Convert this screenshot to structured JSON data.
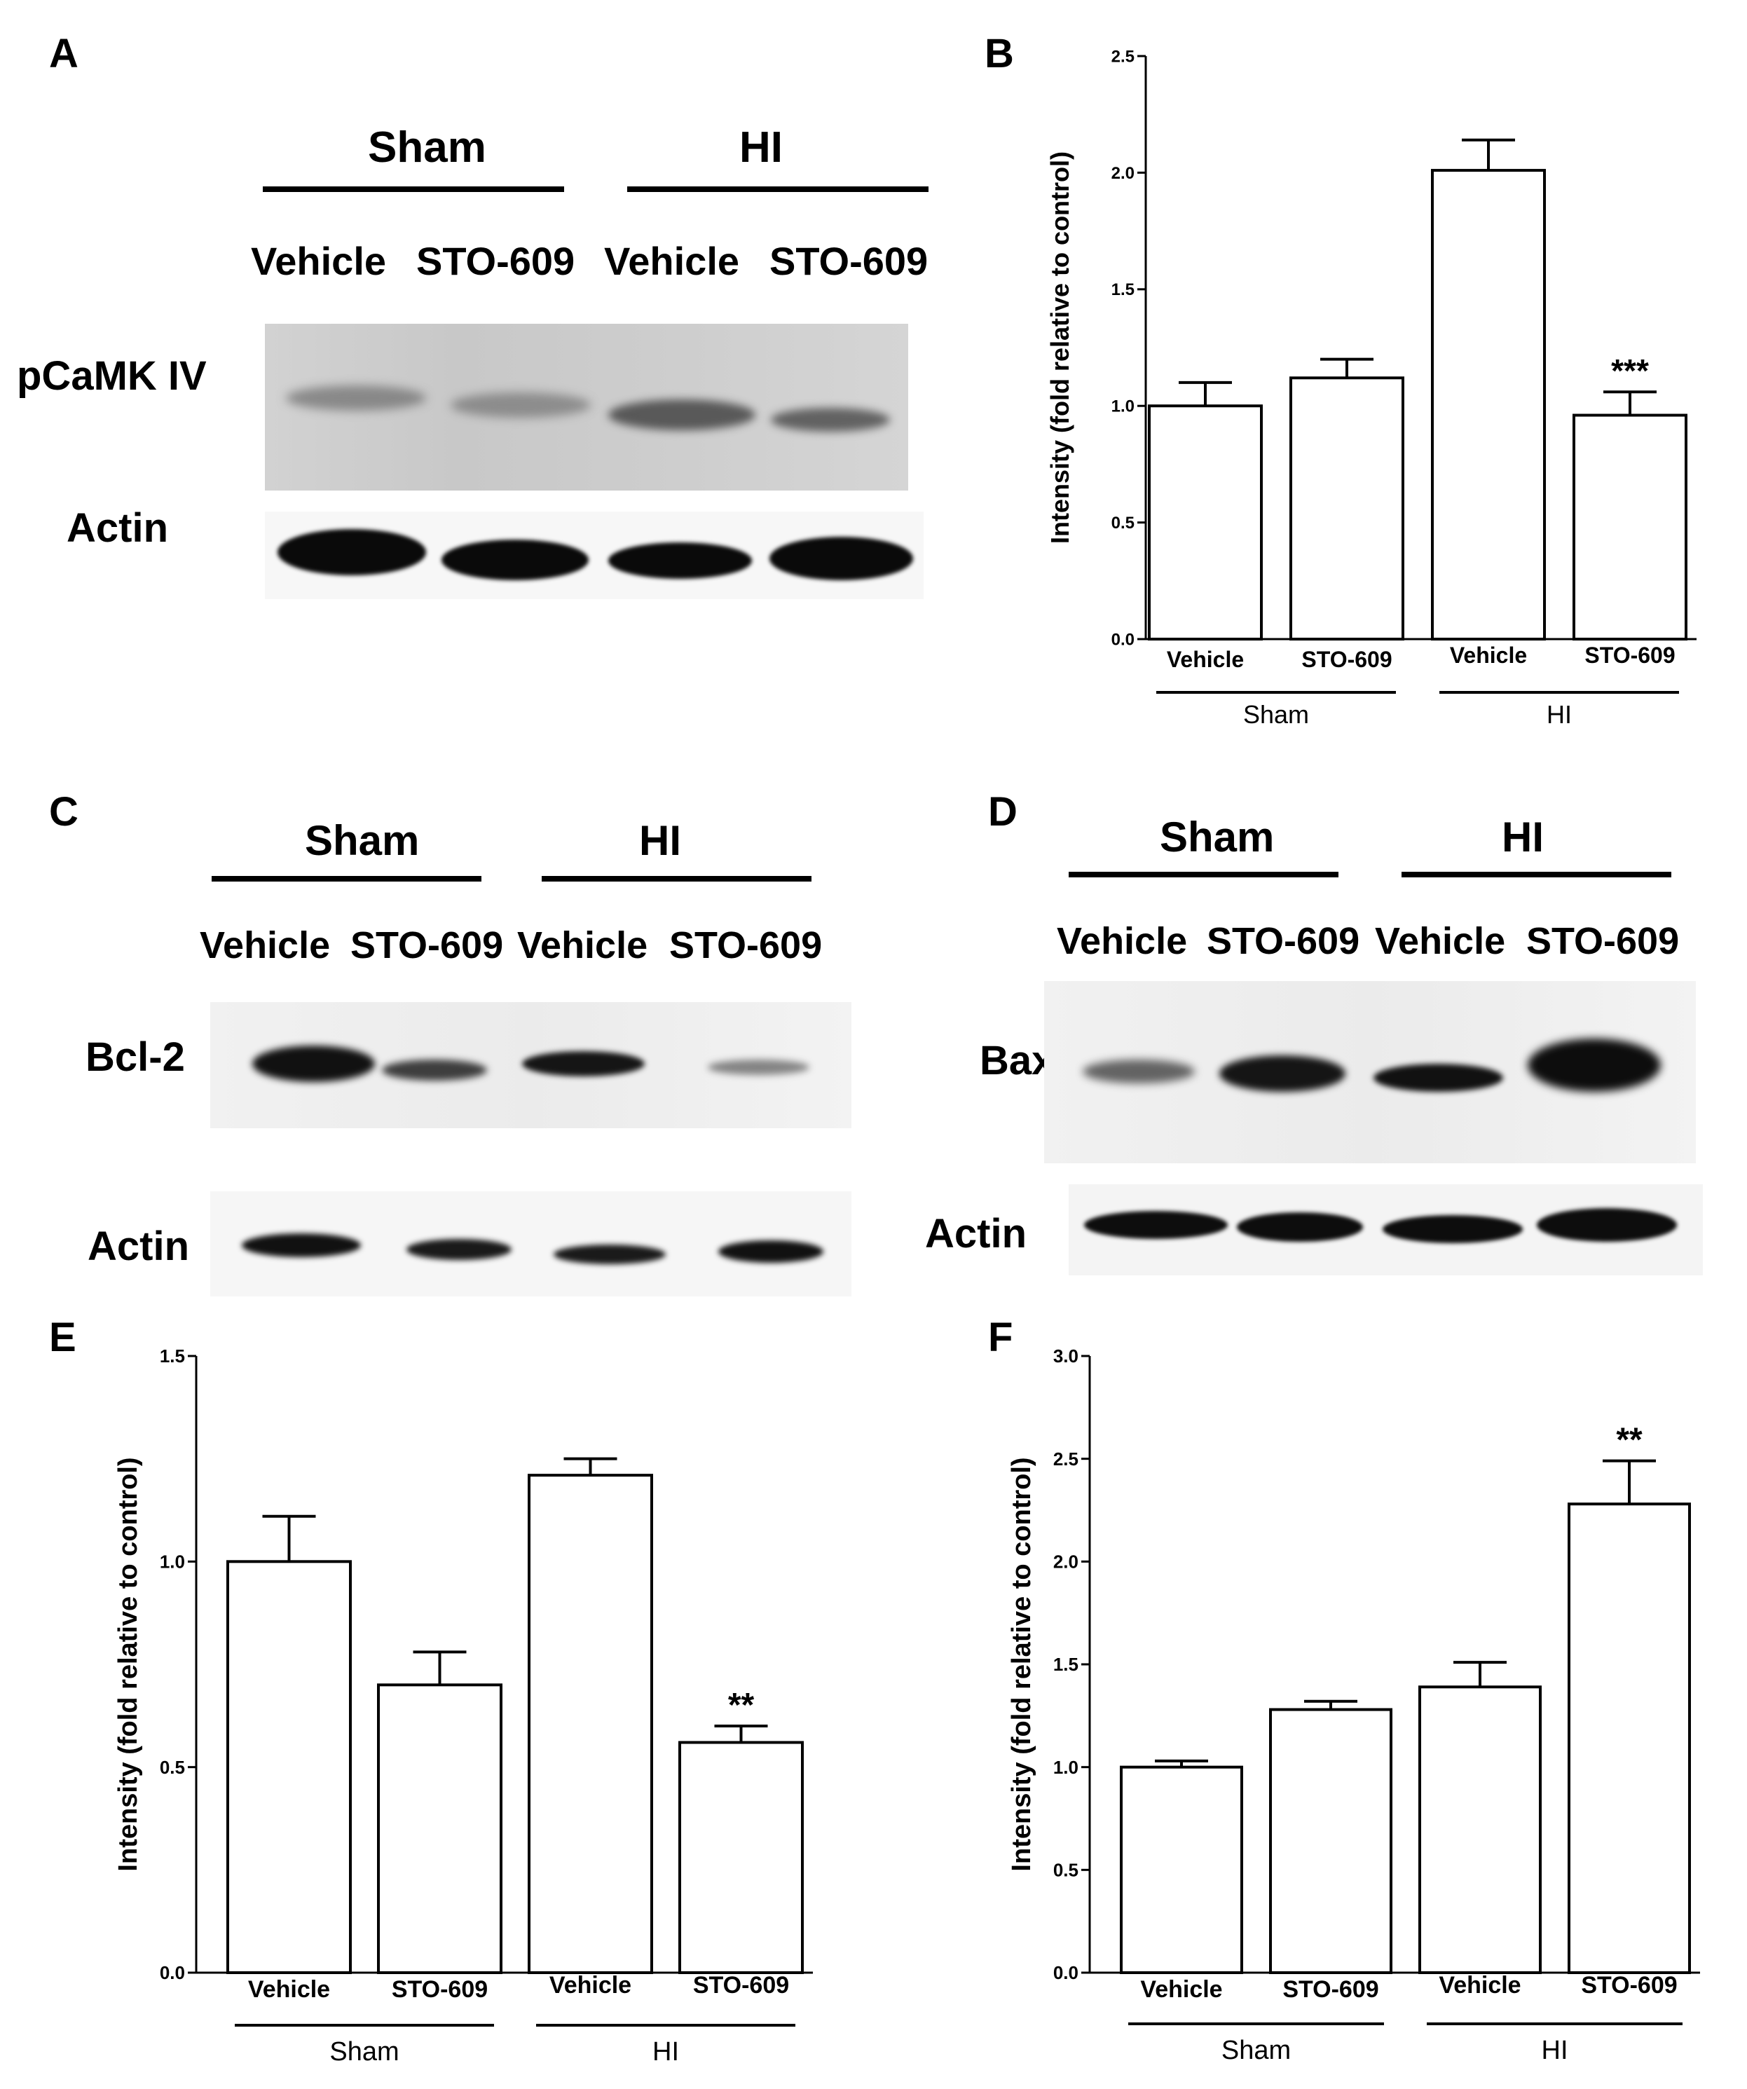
{
  "panels": {
    "A": {
      "label": "A",
      "groups": [
        "Sham",
        "HI"
      ],
      "lanes": [
        "Vehicle",
        "STO-609",
        "Vehicle",
        "STO-609"
      ],
      "rows": [
        "pCaMK IV",
        "Actin"
      ]
    },
    "C": {
      "label": "C",
      "groups": [
        "Sham",
        "HI"
      ],
      "lanes": [
        "Vehicle",
        "STO-609",
        "Vehicle",
        "STO-609"
      ],
      "rows": [
        "Bcl-2",
        "Actin"
      ]
    },
    "D": {
      "label": "D",
      "groups": [
        "Sham",
        "HI"
      ],
      "lanes": [
        "Vehicle",
        "STO-609",
        "Vehicle",
        "STO-609"
      ],
      "rows": [
        "Bax",
        "Actin"
      ]
    }
  },
  "chart_data": [
    {
      "panel": "B",
      "type": "bar",
      "categories": [
        "Vehicle",
        "STO-609",
        "Vehicle",
        "STO-609"
      ],
      "groups": [
        {
          "name": "Sham",
          "categories": [
            0,
            1
          ]
        },
        {
          "name": "HI",
          "categories": [
            2,
            3
          ]
        }
      ],
      "values": [
        1.0,
        1.12,
        2.01,
        0.96
      ],
      "errors": [
        0.1,
        0.08,
        0.13,
        0.1
      ],
      "annotations": [
        "",
        "",
        "",
        "***"
      ],
      "ylabel": "Intensity (fold relative to control)",
      "ylim": [
        0,
        2.5
      ],
      "yticks": [
        "0.0",
        "0.5",
        "1.0",
        "1.5",
        "2.0",
        "2.5"
      ],
      "bar_color": "#ffffff",
      "edge_color": "#000000"
    },
    {
      "panel": "E",
      "type": "bar",
      "categories": [
        "Vehicle",
        "STO-609",
        "Vehicle",
        "STO-609"
      ],
      "groups": [
        {
          "name": "Sham",
          "categories": [
            0,
            1
          ]
        },
        {
          "name": "HI",
          "categories": [
            2,
            3
          ]
        }
      ],
      "values": [
        1.0,
        0.7,
        1.21,
        0.56
      ],
      "errors": [
        0.11,
        0.08,
        0.04,
        0.04
      ],
      "annotations": [
        "",
        "",
        "",
        "**"
      ],
      "ylabel": "Intensity (fold relative to control)",
      "ylim": [
        0,
        1.5
      ],
      "yticks": [
        "0.0",
        "0.5",
        "1.0",
        "1.5"
      ],
      "bar_color": "#ffffff",
      "edge_color": "#000000"
    },
    {
      "panel": "F",
      "type": "bar",
      "categories": [
        "Vehicle",
        "STO-609",
        "Vehicle",
        "STO-609"
      ],
      "groups": [
        {
          "name": "Sham",
          "categories": [
            0,
            1
          ]
        },
        {
          "name": "HI",
          "categories": [
            2,
            3
          ]
        }
      ],
      "values": [
        1.0,
        1.28,
        1.39,
        2.28
      ],
      "errors": [
        0.03,
        0.04,
        0.12,
        0.21
      ],
      "annotations": [
        "",
        "",
        "",
        "**"
      ],
      "ylabel": "Intensity (fold relative to control)",
      "ylim": [
        0,
        3.0
      ],
      "yticks": [
        "0.0",
        "0.5",
        "1.0",
        "1.5",
        "2.0",
        "2.5",
        "3.0"
      ],
      "bar_color": "#ffffff",
      "edge_color": "#000000"
    }
  ]
}
